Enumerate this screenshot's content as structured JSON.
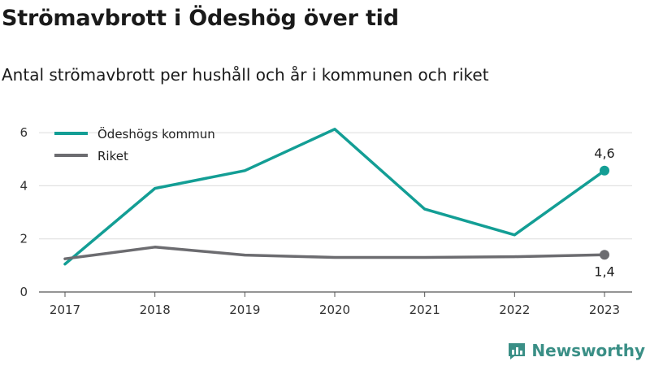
{
  "title": "Strömavbrott i Ödeshög över tid",
  "subtitle": "Antal strömavbrott per hushåll och år i kommunen och riket",
  "brand": {
    "name": "Newsworthy",
    "icon": "bar-chart-logo-icon"
  },
  "colors": {
    "kommun": "#139e95",
    "riket": "#6c6c70",
    "grid": "#dcdcdc",
    "brand": "#3a8f86"
  },
  "chart_data": {
    "type": "line",
    "x": [
      "2017",
      "2018",
      "2019",
      "2020",
      "2021",
      "2022",
      "2023"
    ],
    "ylim": [
      0,
      6.4
    ],
    "yticks": [
      0,
      2,
      4,
      6
    ],
    "grid": true,
    "legend_position": "top-left",
    "series": [
      {
        "name": "Ödeshögs kommun",
        "values": [
          1.05,
          3.9,
          4.57,
          6.13,
          3.12,
          2.15,
          4.57
        ],
        "end_label": "4,6",
        "color_key": "kommun"
      },
      {
        "name": "Riket",
        "values": [
          1.25,
          1.69,
          1.39,
          1.3,
          1.3,
          1.33,
          1.4
        ],
        "end_label": "1,4",
        "color_key": "riket"
      }
    ]
  }
}
